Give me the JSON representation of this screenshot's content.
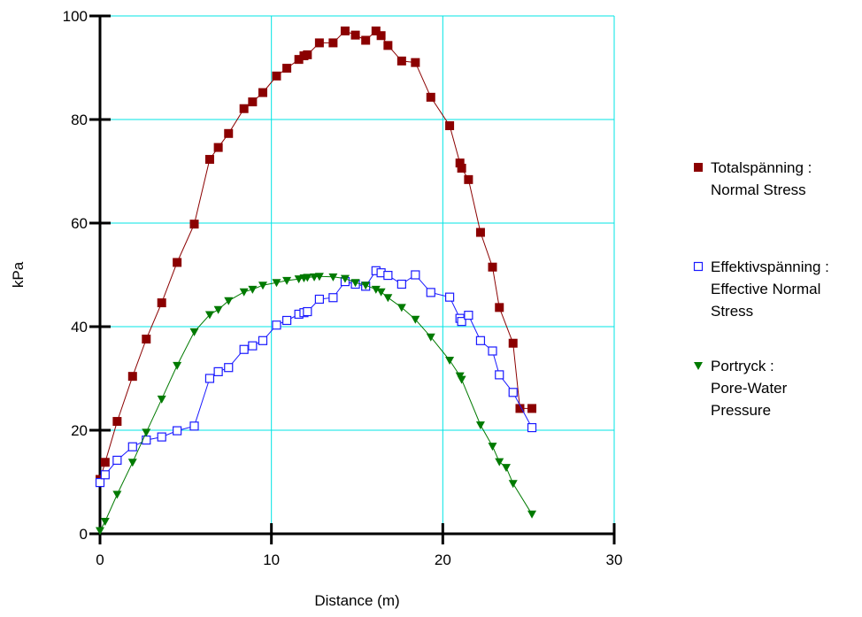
{
  "chart_data": {
    "type": "line",
    "xlabel": "Distance (m)",
    "ylabel": "kPa",
    "xlim": [
      0,
      30
    ],
    "ylim": [
      0,
      100
    ],
    "x_ticks": [
      0,
      10,
      20,
      30
    ],
    "y_ticks": [
      0,
      20,
      40,
      60,
      80,
      100
    ],
    "x_tick_labels": [
      "0",
      "10",
      "20",
      "30"
    ],
    "y_tick_labels": [
      "0",
      "20",
      "40",
      "60",
      "80",
      "100"
    ],
    "grid": true,
    "grid_color": "#00e5e5",
    "legend_position": "right",
    "series": [
      {
        "key": "total",
        "legend_lines": [
          "Totalspänning :",
          "Normal Stress"
        ],
        "color": "#8b0000",
        "marker": "filled-square",
        "x": [
          0.0,
          0.3,
          1.0,
          1.9,
          2.7,
          3.6,
          4.5,
          5.5,
          6.4,
          6.9,
          7.5,
          8.4,
          8.9,
          9.5,
          10.3,
          10.9,
          11.6,
          11.9,
          12.1,
          12.8,
          13.6,
          14.3,
          14.9,
          15.5,
          16.1,
          16.4,
          16.8,
          17.6,
          18.4,
          19.3,
          20.4,
          21.0,
          21.1,
          21.5,
          22.2,
          22.9,
          23.3,
          24.1,
          24.5,
          25.2
        ],
        "y": [
          10.5,
          13.8,
          21.7,
          30.4,
          37.6,
          44.6,
          52.4,
          59.8,
          72.3,
          74.6,
          77.3,
          82.1,
          83.4,
          85.2,
          88.4,
          89.9,
          91.6,
          92.3,
          92.5,
          94.8,
          94.8,
          97.1,
          96.3,
          95.3,
          97.1,
          96.2,
          94.3,
          91.3,
          91.0,
          84.3,
          78.8,
          71.6,
          70.6,
          68.4,
          58.2,
          51.5,
          43.7,
          36.8,
          24.2,
          24.2
        ]
      },
      {
        "key": "effective",
        "legend_lines": [
          "Effektivspänning :",
          "Effective Normal",
          "Stress"
        ],
        "color": "#1a1aff",
        "marker": "open-square",
        "x": [
          0.0,
          0.3,
          1.0,
          1.9,
          2.7,
          3.6,
          4.5,
          5.5,
          6.4,
          6.9,
          7.5,
          8.4,
          8.9,
          9.5,
          10.3,
          10.9,
          11.6,
          11.9,
          12.1,
          12.8,
          13.6,
          14.3,
          14.9,
          15.5,
          16.1,
          16.4,
          16.8,
          17.6,
          18.4,
          19.3,
          20.4,
          21.0,
          21.1,
          21.5,
          22.2,
          22.9,
          23.3,
          24.1,
          25.2
        ],
        "y": [
          9.9,
          11.4,
          14.2,
          16.8,
          18.1,
          18.7,
          19.9,
          20.8,
          30.0,
          31.3,
          32.1,
          35.6,
          36.3,
          37.3,
          40.3,
          41.2,
          42.4,
          42.7,
          42.9,
          45.3,
          45.6,
          48.7,
          48.2,
          47.8,
          50.8,
          50.4,
          49.9,
          48.2,
          50.0,
          46.6,
          45.7,
          41.6,
          41.0,
          42.2,
          37.3,
          35.3,
          30.7,
          27.3,
          20.5
        ]
      },
      {
        "key": "pore",
        "legend_lines": [
          "Portryck :",
          "Pore-Water",
          "Pressure"
        ],
        "color": "#007a00",
        "marker": "filled-triangle-down",
        "x": [
          0.0,
          0.3,
          1.0,
          1.9,
          2.7,
          3.6,
          4.5,
          5.5,
          6.4,
          6.9,
          7.5,
          8.4,
          8.9,
          9.5,
          10.3,
          10.9,
          11.6,
          11.9,
          12.1,
          12.5,
          12.8,
          13.6,
          14.3,
          14.9,
          15.5,
          16.1,
          16.4,
          16.8,
          17.6,
          18.4,
          19.3,
          20.4,
          21.0,
          21.1,
          22.2,
          22.9,
          23.3,
          23.7,
          24.1,
          25.2
        ],
        "y": [
          0.6,
          2.4,
          7.6,
          13.8,
          19.6,
          26.0,
          32.5,
          39.0,
          42.3,
          43.3,
          45.0,
          46.7,
          47.2,
          48.0,
          48.5,
          48.9,
          49.2,
          49.4,
          49.5,
          49.6,
          49.7,
          49.6,
          49.3,
          48.5,
          48.0,
          47.2,
          46.7,
          45.6,
          43.7,
          41.4,
          38.0,
          33.5,
          30.5,
          29.8,
          21.0,
          16.9,
          13.9,
          12.8,
          9.7,
          3.8
        ]
      }
    ]
  }
}
